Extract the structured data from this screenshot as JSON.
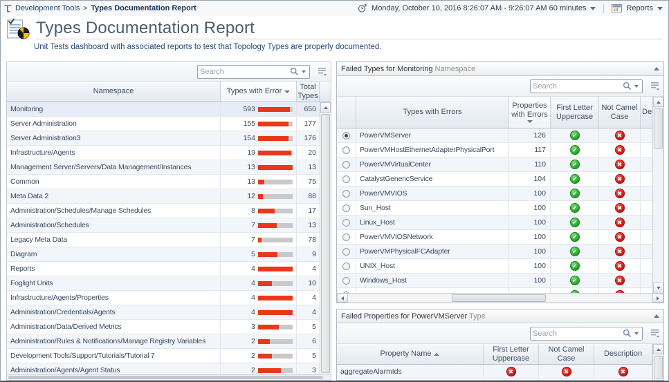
{
  "topbar": {
    "breadcrumb": {
      "root": "Development Tools",
      "separator": ">",
      "current": "Types Documentation Report"
    },
    "time_range_label": "Monday, October 10, 2016 8:26:07 AM - 9:26:07 AM 60 minutes",
    "reports_label": "Reports"
  },
  "header": {
    "title": "Types Documentation Report",
    "subtitle": "Unit Tests dashboard with associated reports to test that Topology Types are properly documented."
  },
  "namespace_panel": {
    "search_placeholder": "Search",
    "columns": {
      "namespace": "Namespace",
      "errors": "Types with Error",
      "total": "Total Types"
    },
    "sort": {
      "column": "Types with Error",
      "direction": "desc"
    },
    "rows": [
      {
        "namespace": "Monitoring",
        "errors": 593,
        "total": 650,
        "selected": true
      },
      {
        "namespace": "Server Administration",
        "errors": 155,
        "total": 177
      },
      {
        "namespace": "Server Administration3",
        "errors": 154,
        "total": 176
      },
      {
        "namespace": "Infrastructure/Agents",
        "errors": 19,
        "total": 20
      },
      {
        "namespace": "Management Server/Servers/Data Management/Instances",
        "errors": 13,
        "total": 13
      },
      {
        "namespace": "Common",
        "errors": 13,
        "total": 75
      },
      {
        "namespace": "Meta Data 2",
        "errors": 12,
        "total": 88
      },
      {
        "namespace": "Administration/Schedules/Manage Schedules",
        "errors": 8,
        "total": 17
      },
      {
        "namespace": "Administration/Schedules",
        "errors": 7,
        "total": 13
      },
      {
        "namespace": "Legacy Meta Data",
        "errors": 7,
        "total": 78
      },
      {
        "namespace": "Diagram",
        "errors": 5,
        "total": 9
      },
      {
        "namespace": "Reports",
        "errors": 4,
        "total": 4
      },
      {
        "namespace": "Foglight Units",
        "errors": 4,
        "total": 10
      },
      {
        "namespace": "Infrastructure/Agents/Properties",
        "errors": 4,
        "total": 4
      },
      {
        "namespace": "Administration/Credentials/Agents",
        "errors": 4,
        "total": 4
      },
      {
        "namespace": "Administration/Data/Derived Metrics",
        "errors": 3,
        "total": 5
      },
      {
        "namespace": "Administration/Rules & Notifications/Manage Registry Variables",
        "errors": 2,
        "total": 6
      },
      {
        "namespace": "Development Tools/Support/Tutorials/Tutorial 7",
        "errors": 2,
        "total": 5
      },
      {
        "namespace": "Administration/Agents/Agent Status",
        "errors": 2,
        "total": 3
      }
    ]
  },
  "failed_types_panel": {
    "title": {
      "prefix": "Failed Types for",
      "value": "Monitoring",
      "suffix": "Namespace"
    },
    "search_placeholder": "Search",
    "columns": {
      "type": "Types with Errors",
      "props": "Properties with Errors",
      "first_letter": "First Letter Uppercase",
      "not_camel": "Not Camel Case",
      "description": "Description"
    },
    "sort": {
      "column": "Properties with Errors",
      "direction": "desc"
    },
    "rows": [
      {
        "type": "PowerVMServer",
        "props": 126,
        "first_letter": "pass",
        "not_camel": "fail",
        "selected": true
      },
      {
        "type": "PowerVMHostEthernetAdapterPhysicalPort",
        "props": 117,
        "first_letter": "pass",
        "not_camel": "fail"
      },
      {
        "type": "PowerVMVirtualCenter",
        "props": 110,
        "first_letter": "pass",
        "not_camel": "fail"
      },
      {
        "type": "CatalystGenericService",
        "props": 104,
        "first_letter": "pass",
        "not_camel": "fail"
      },
      {
        "type": "PowerVMVIOS",
        "props": 100,
        "first_letter": "pass",
        "not_camel": "fail"
      },
      {
        "type": "Sun_Host",
        "props": 100,
        "first_letter": "pass",
        "not_camel": "fail"
      },
      {
        "type": "Linux_Host",
        "props": 100,
        "first_letter": "pass",
        "not_camel": "fail"
      },
      {
        "type": "PowerVMVIOSNetwork",
        "props": 100,
        "first_letter": "pass",
        "not_camel": "fail"
      },
      {
        "type": "PowerVMPhysicalFCAdapter",
        "props": 100,
        "first_letter": "pass",
        "not_camel": "fail"
      },
      {
        "type": "UNIX_Host",
        "props": 100,
        "first_letter": "pass",
        "not_camel": "fail"
      },
      {
        "type": "Windows_Host",
        "props": 100,
        "first_letter": "pass",
        "not_camel": "fail"
      },
      {
        "type": "",
        "props": "",
        "first_letter": "pass",
        "not_camel": "fail"
      }
    ]
  },
  "failed_properties_panel": {
    "title": {
      "prefix": "Failed Properties for",
      "value": "PowerVMServer",
      "suffix": "Type"
    },
    "search_placeholder": "Search",
    "columns": {
      "name": "Property Name",
      "first_letter": "First Letter Uppercase",
      "not_camel": "Not Camel Case",
      "description": "Description"
    },
    "sort": {
      "column": "Property Name",
      "direction": "asc"
    },
    "rows": [
      {
        "name": "aggregateAlarmIds",
        "first_letter": "fail",
        "not_camel": "fail",
        "description": "fail"
      }
    ]
  },
  "colors": {
    "bar_error": "#e8381b",
    "bar_track": "#c9c9c9",
    "pass_green": "#27a42f",
    "fail_red": "#d31510",
    "selected_row": "#e7edf6",
    "row_stripe": "#f2f5f9",
    "title_text": "#4c5c6e",
    "breadcrumb_text": "#1d3f6e"
  }
}
